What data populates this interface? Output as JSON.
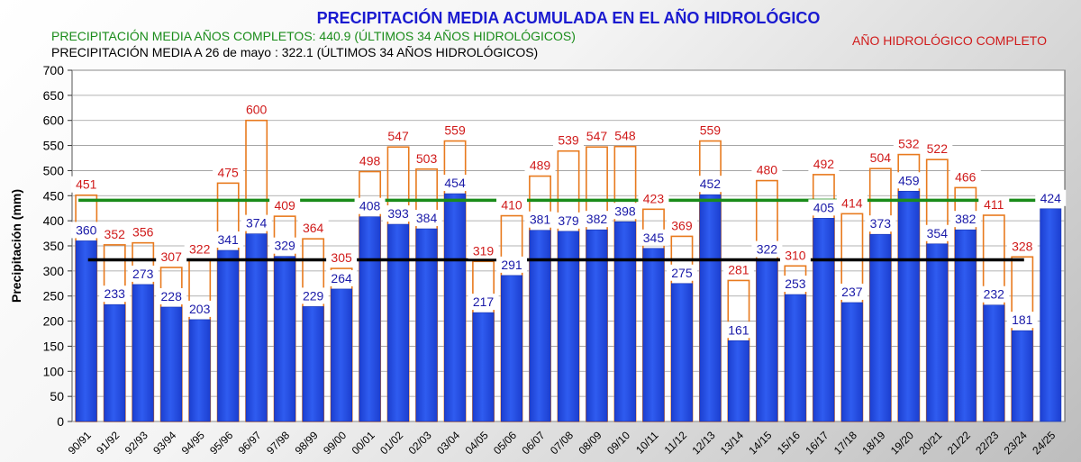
{
  "title": "PRECIPITACIÓN MEDIA ACUMULADA EN EL AÑO HIDROLÓGICO",
  "subtitle_complete": "PRECIPITACIÓN MEDIA AÑOS COMPLETOS: 440.9 (ÚLTIMOS 34 AÑOS HIDROLÓGICOS)",
  "subtitle_partial": "PRECIPITACIÓN MEDIA A 26 de mayo : 322.1 (ÚLTIMOS 34 AÑOS HIDROLÓGICOS)",
  "legend_complete": "AÑO HIDROLÓGICO COMPLETO",
  "colors": {
    "title": "#1a1ad0",
    "bar": "#2f5cf0",
    "bar_outline": "#e87a1e",
    "complete_label": "#d01a1a",
    "partial_label": "#1a1aa8",
    "mean_complete": "#1a8c1a",
    "mean_partial": "#000000"
  },
  "chart_data": {
    "type": "bar",
    "ylabel": "Precipitación (mm)",
    "ylim": [
      0,
      700
    ],
    "yticks": [
      0,
      50,
      100,
      150,
      200,
      250,
      300,
      350,
      400,
      450,
      500,
      550,
      600,
      650,
      700
    ],
    "grid": true,
    "categories": [
      "90/91",
      "91/92",
      "92/93",
      "93/94",
      "94/95",
      "95/96",
      "96/97",
      "97/98",
      "98/99",
      "99/00",
      "00/01",
      "01/02",
      "02/03",
      "03/04",
      "04/05",
      "05/06",
      "06/07",
      "07/08",
      "08/09",
      "09/10",
      "10/11",
      "11/12",
      "12/13",
      "13/14",
      "14/15",
      "15/16",
      "16/17",
      "17/18",
      "18/19",
      "19/20",
      "20/21",
      "21/22",
      "22/23",
      "23/24",
      "24/25"
    ],
    "series": [
      {
        "values": [
          360,
          233,
          273,
          228,
          203,
          341,
          374,
          329,
          229,
          264,
          408,
          393,
          384,
          454,
          217,
          291,
          381,
          379,
          382,
          398,
          345,
          275,
          452,
          161,
          322,
          253,
          405,
          237,
          373,
          459,
          354,
          382,
          232,
          181,
          424
        ]
      },
      {
        "name": "AÑO HIDROLÓGICO COMPLETO",
        "values": [
          451,
          352,
          356,
          307,
          322,
          475,
          600,
          409,
          364,
          305,
          498,
          547,
          503,
          559,
          319,
          410,
          489,
          539,
          547,
          548,
          423,
          369,
          559,
          281,
          480,
          310,
          492,
          414,
          504,
          532,
          522,
          466,
          411,
          328,
          null
        ]
      }
    ],
    "reference_lines": [
      {
        "value": 440.9
      },
      {
        "value": 322.1
      }
    ]
  }
}
